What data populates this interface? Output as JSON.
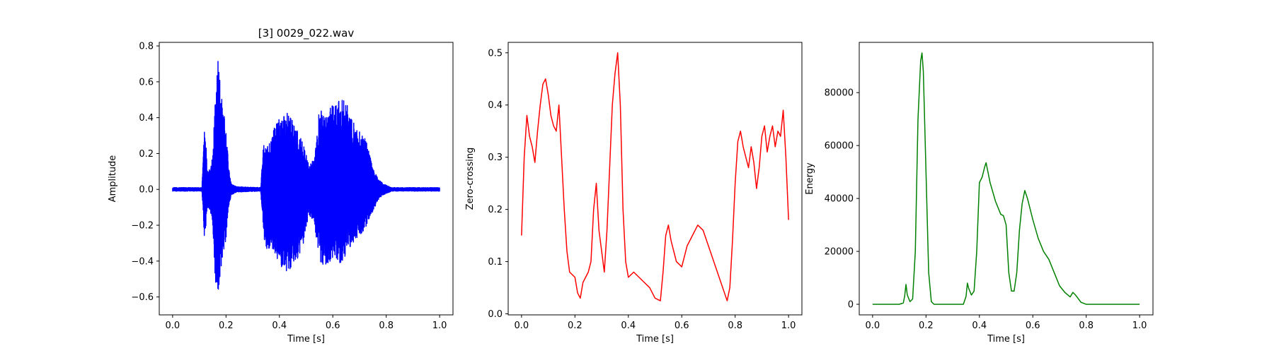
{
  "chart_data": [
    {
      "type": "line",
      "title": "[3] 0029_022.wav",
      "xlabel": "Time [s]",
      "ylabel": "Amplitude",
      "xlim": [
        -0.05,
        1.05
      ],
      "ylim": [
        -0.7,
        0.82
      ],
      "xticks": [
        "0.0",
        "0.2",
        "0.4",
        "0.6",
        "0.8",
        "1.0"
      ],
      "yticks": [
        "−0.6",
        "−0.4",
        "−0.2",
        "0.0",
        "0.2",
        "0.4",
        "0.6",
        "0.8"
      ],
      "color": "#0000ff",
      "signal": "waveform",
      "envelope": [
        [
          0.0,
          0.01,
          -0.01
        ],
        [
          0.11,
          0.01,
          -0.01
        ],
        [
          0.12,
          0.44,
          -0.31
        ],
        [
          0.13,
          0.1,
          -0.1
        ],
        [
          0.14,
          0.12,
          -0.12
        ],
        [
          0.15,
          0.22,
          -0.2
        ],
        [
          0.16,
          0.5,
          -0.51
        ],
        [
          0.17,
          0.76,
          -0.62
        ],
        [
          0.18,
          0.55,
          -0.55
        ],
        [
          0.19,
          0.45,
          -0.35
        ],
        [
          0.2,
          0.36,
          -0.3
        ],
        [
          0.21,
          0.12,
          -0.1
        ],
        [
          0.22,
          0.03,
          -0.03
        ],
        [
          0.24,
          0.015,
          -0.015
        ],
        [
          0.33,
          0.01,
          -0.01
        ],
        [
          0.34,
          0.25,
          -0.25
        ],
        [
          0.35,
          0.24,
          -0.34
        ],
        [
          0.37,
          0.28,
          -0.32
        ],
        [
          0.39,
          0.4,
          -0.38
        ],
        [
          0.41,
          0.4,
          -0.44
        ],
        [
          0.43,
          0.45,
          -0.47
        ],
        [
          0.45,
          0.4,
          -0.42
        ],
        [
          0.47,
          0.32,
          -0.38
        ],
        [
          0.49,
          0.25,
          -0.3
        ],
        [
          0.51,
          0.14,
          -0.14
        ],
        [
          0.53,
          0.18,
          -0.18
        ],
        [
          0.55,
          0.45,
          -0.4
        ],
        [
          0.57,
          0.42,
          -0.43
        ],
        [
          0.59,
          0.46,
          -0.4
        ],
        [
          0.61,
          0.48,
          -0.38
        ],
        [
          0.63,
          0.5,
          -0.42
        ],
        [
          0.65,
          0.49,
          -0.36
        ],
        [
          0.67,
          0.4,
          -0.32
        ],
        [
          0.69,
          0.33,
          -0.28
        ],
        [
          0.71,
          0.32,
          -0.24
        ],
        [
          0.73,
          0.25,
          -0.2
        ],
        [
          0.75,
          0.12,
          -0.12
        ],
        [
          0.77,
          0.06,
          -0.06
        ],
        [
          0.79,
          0.03,
          -0.03
        ],
        [
          0.82,
          0.01,
          -0.01
        ],
        [
          1.0,
          0.01,
          -0.01
        ]
      ]
    },
    {
      "type": "line",
      "title": "",
      "xlabel": "Time [s]",
      "ylabel": "Zero-crossing",
      "xlim": [
        -0.05,
        1.05
      ],
      "ylim": [
        -0.002,
        0.52
      ],
      "xticks": [
        "0.0",
        "0.2",
        "0.4",
        "0.6",
        "0.8",
        "1.0"
      ],
      "yticks": [
        "0.0",
        "0.1",
        "0.2",
        "0.3",
        "0.4",
        "0.5"
      ],
      "color": "#ff0000",
      "points": [
        [
          0.0,
          0.15
        ],
        [
          0.01,
          0.3
        ],
        [
          0.02,
          0.38
        ],
        [
          0.03,
          0.34
        ],
        [
          0.04,
          0.32
        ],
        [
          0.05,
          0.29
        ],
        [
          0.06,
          0.35
        ],
        [
          0.07,
          0.4
        ],
        [
          0.08,
          0.44
        ],
        [
          0.09,
          0.45
        ],
        [
          0.1,
          0.42
        ],
        [
          0.11,
          0.38
        ],
        [
          0.12,
          0.36
        ],
        [
          0.13,
          0.35
        ],
        [
          0.14,
          0.4
        ],
        [
          0.15,
          0.3
        ],
        [
          0.16,
          0.2
        ],
        [
          0.17,
          0.12
        ],
        [
          0.18,
          0.08
        ],
        [
          0.2,
          0.07
        ],
        [
          0.21,
          0.04
        ],
        [
          0.22,
          0.03
        ],
        [
          0.23,
          0.06
        ],
        [
          0.24,
          0.07
        ],
        [
          0.25,
          0.08
        ],
        [
          0.26,
          0.1
        ],
        [
          0.27,
          0.2
        ],
        [
          0.28,
          0.25
        ],
        [
          0.29,
          0.16
        ],
        [
          0.3,
          0.12
        ],
        [
          0.31,
          0.08
        ],
        [
          0.32,
          0.16
        ],
        [
          0.33,
          0.28
        ],
        [
          0.34,
          0.4
        ],
        [
          0.35,
          0.46
        ],
        [
          0.36,
          0.5
        ],
        [
          0.37,
          0.4
        ],
        [
          0.38,
          0.2
        ],
        [
          0.39,
          0.1
        ],
        [
          0.4,
          0.07
        ],
        [
          0.42,
          0.08
        ],
        [
          0.44,
          0.07
        ],
        [
          0.46,
          0.06
        ],
        [
          0.48,
          0.05
        ],
        [
          0.5,
          0.03
        ],
        [
          0.52,
          0.025
        ],
        [
          0.53,
          0.08
        ],
        [
          0.54,
          0.15
        ],
        [
          0.55,
          0.17
        ],
        [
          0.56,
          0.14
        ],
        [
          0.57,
          0.12
        ],
        [
          0.58,
          0.1
        ],
        [
          0.6,
          0.09
        ],
        [
          0.62,
          0.13
        ],
        [
          0.64,
          0.15
        ],
        [
          0.66,
          0.17
        ],
        [
          0.68,
          0.16
        ],
        [
          0.7,
          0.13
        ],
        [
          0.72,
          0.1
        ],
        [
          0.74,
          0.07
        ],
        [
          0.76,
          0.04
        ],
        [
          0.77,
          0.025
        ],
        [
          0.78,
          0.05
        ],
        [
          0.79,
          0.14
        ],
        [
          0.8,
          0.25
        ],
        [
          0.81,
          0.33
        ],
        [
          0.82,
          0.35
        ],
        [
          0.83,
          0.32
        ],
        [
          0.84,
          0.3
        ],
        [
          0.85,
          0.28
        ],
        [
          0.86,
          0.32
        ],
        [
          0.87,
          0.29
        ],
        [
          0.88,
          0.24
        ],
        [
          0.89,
          0.28
        ],
        [
          0.9,
          0.34
        ],
        [
          0.91,
          0.36
        ],
        [
          0.92,
          0.31
        ],
        [
          0.93,
          0.34
        ],
        [
          0.94,
          0.36
        ],
        [
          0.95,
          0.32
        ],
        [
          0.96,
          0.35
        ],
        [
          0.97,
          0.34
        ],
        [
          0.98,
          0.39
        ],
        [
          0.99,
          0.3
        ],
        [
          1.0,
          0.18
        ]
      ]
    },
    {
      "type": "line",
      "title": "",
      "xlabel": "Time [s]",
      "ylabel": "Energy",
      "xlim": [
        -0.05,
        1.05
      ],
      "ylim": [
        -4000,
        99000
      ],
      "xticks": [
        "0.0",
        "0.2",
        "0.4",
        "0.6",
        "0.8",
        "1.0"
      ],
      "yticks": [
        "0",
        "20000",
        "40000",
        "60000",
        "80000"
      ],
      "ytick_values": [
        0,
        20000,
        40000,
        60000,
        80000
      ],
      "color": "#008000",
      "points": [
        [
          0.0,
          0
        ],
        [
          0.1,
          0
        ],
        [
          0.115,
          500
        ],
        [
          0.12,
          3000
        ],
        [
          0.125,
          7500
        ],
        [
          0.13,
          3500
        ],
        [
          0.14,
          1000
        ],
        [
          0.15,
          2000
        ],
        [
          0.16,
          20000
        ],
        [
          0.17,
          70000
        ],
        [
          0.18,
          92000
        ],
        [
          0.185,
          95000
        ],
        [
          0.19,
          88000
        ],
        [
          0.2,
          50000
        ],
        [
          0.21,
          12000
        ],
        [
          0.22,
          1000
        ],
        [
          0.23,
          0
        ],
        [
          0.34,
          0
        ],
        [
          0.35,
          3000
        ],
        [
          0.355,
          8000
        ],
        [
          0.36,
          6000
        ],
        [
          0.37,
          3500
        ],
        [
          0.38,
          5000
        ],
        [
          0.39,
          20000
        ],
        [
          0.4,
          46000
        ],
        [
          0.41,
          48000
        ],
        [
          0.42,
          52000
        ],
        [
          0.425,
          53500
        ],
        [
          0.43,
          51000
        ],
        [
          0.44,
          46000
        ],
        [
          0.46,
          39000
        ],
        [
          0.48,
          34000
        ],
        [
          0.49,
          33500
        ],
        [
          0.5,
          30000
        ],
        [
          0.51,
          12000
        ],
        [
          0.52,
          5000
        ],
        [
          0.53,
          5000
        ],
        [
          0.54,
          12000
        ],
        [
          0.55,
          28000
        ],
        [
          0.56,
          38000
        ],
        [
          0.57,
          43000
        ],
        [
          0.58,
          40000
        ],
        [
          0.6,
          32000
        ],
        [
          0.62,
          25000
        ],
        [
          0.64,
          20000
        ],
        [
          0.66,
          17000
        ],
        [
          0.68,
          12000
        ],
        [
          0.7,
          7000
        ],
        [
          0.72,
          4500
        ],
        [
          0.74,
          2800
        ],
        [
          0.75,
          4500
        ],
        [
          0.76,
          3500
        ],
        [
          0.78,
          800
        ],
        [
          0.8,
          0
        ],
        [
          1.0,
          0
        ]
      ]
    }
  ]
}
